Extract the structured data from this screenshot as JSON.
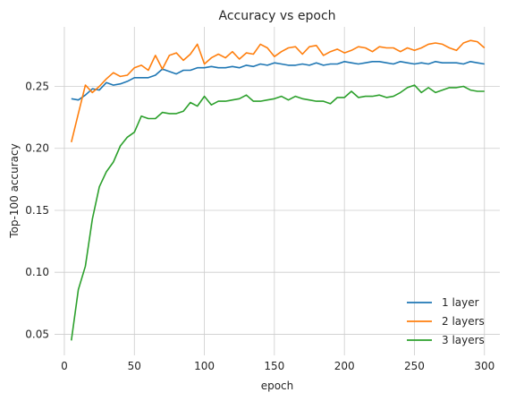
{
  "chart_data": {
    "type": "line",
    "title": "Accuracy vs epoch",
    "xlabel": "epoch",
    "ylabel": "Top-100 accuracy",
    "xlim": [
      -7,
      311
    ],
    "ylim": [
      0.033,
      0.298
    ],
    "xticks": [
      0,
      50,
      100,
      150,
      200,
      250,
      300
    ],
    "yticks": [
      0.05,
      0.1,
      0.15,
      0.2,
      0.25
    ],
    "grid": true,
    "legend": "lower-right",
    "x": [
      5,
      10,
      15,
      20,
      25,
      30,
      35,
      40,
      45,
      50,
      55,
      60,
      65,
      70,
      75,
      80,
      85,
      90,
      95,
      100,
      105,
      110,
      115,
      120,
      125,
      130,
      135,
      140,
      145,
      150,
      155,
      160,
      165,
      170,
      175,
      180,
      185,
      190,
      195,
      200,
      205,
      210,
      215,
      220,
      225,
      230,
      235,
      240,
      245,
      250,
      255,
      260,
      265,
      270,
      275,
      280,
      285,
      290,
      295,
      300
    ],
    "series": [
      {
        "name": "1 layer",
        "color": "#1f77b4",
        "values": [
          0.24,
          0.239,
          0.243,
          0.248,
          0.247,
          0.253,
          0.251,
          0.252,
          0.254,
          0.257,
          0.257,
          0.257,
          0.259,
          0.264,
          0.262,
          0.26,
          0.263,
          0.263,
          0.265,
          0.265,
          0.266,
          0.265,
          0.265,
          0.266,
          0.265,
          0.267,
          0.266,
          0.268,
          0.267,
          0.269,
          0.268,
          0.267,
          0.267,
          0.268,
          0.267,
          0.269,
          0.267,
          0.268,
          0.268,
          0.27,
          0.269,
          0.268,
          0.269,
          0.27,
          0.27,
          0.269,
          0.268,
          0.27,
          0.269,
          0.268,
          0.269,
          0.268,
          0.27,
          0.269,
          0.269,
          0.269,
          0.268,
          0.27,
          0.269,
          0.268
        ]
      },
      {
        "name": "2 layers",
        "color": "#ff7f0e",
        "values": [
          0.205,
          0.228,
          0.251,
          0.245,
          0.25,
          0.256,
          0.261,
          0.258,
          0.259,
          0.265,
          0.267,
          0.263,
          0.275,
          0.264,
          0.275,
          0.277,
          0.271,
          0.276,
          0.284,
          0.268,
          0.273,
          0.276,
          0.273,
          0.278,
          0.272,
          0.277,
          0.276,
          0.284,
          0.281,
          0.274,
          0.278,
          0.281,
          0.282,
          0.276,
          0.282,
          0.283,
          0.275,
          0.278,
          0.28,
          0.277,
          0.279,
          0.282,
          0.281,
          0.278,
          0.282,
          0.281,
          0.281,
          0.278,
          0.281,
          0.279,
          0.281,
          0.284,
          0.285,
          0.284,
          0.281,
          0.279,
          0.285,
          0.287,
          0.286,
          0.281
        ]
      },
      {
        "name": "3 layers",
        "color": "#2ca02c",
        "values": [
          0.045,
          0.086,
          0.105,
          0.143,
          0.169,
          0.181,
          0.189,
          0.202,
          0.209,
          0.213,
          0.226,
          0.224,
          0.224,
          0.229,
          0.228,
          0.228,
          0.23,
          0.237,
          0.234,
          0.242,
          0.235,
          0.238,
          0.238,
          0.239,
          0.24,
          0.243,
          0.238,
          0.238,
          0.239,
          0.24,
          0.242,
          0.239,
          0.242,
          0.24,
          0.239,
          0.238,
          0.238,
          0.236,
          0.241,
          0.241,
          0.246,
          0.241,
          0.242,
          0.242,
          0.243,
          0.241,
          0.242,
          0.245,
          0.249,
          0.251,
          0.245,
          0.249,
          0.245,
          0.247,
          0.249,
          0.249,
          0.25,
          0.247,
          0.246,
          0.246
        ]
      }
    ]
  }
}
